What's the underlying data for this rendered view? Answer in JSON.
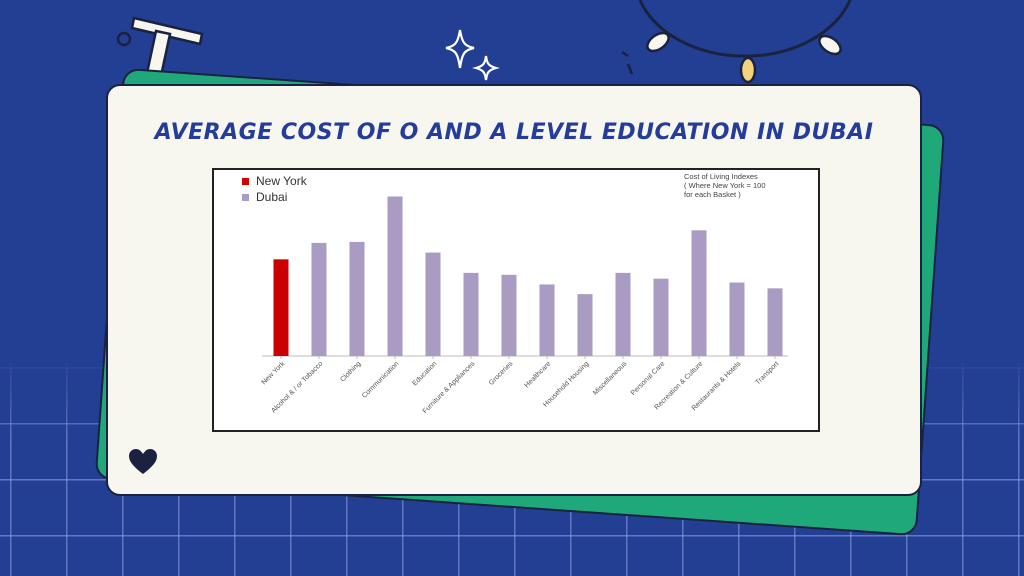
{
  "slide": {
    "title": "AVERAGE COST OF O AND A LEVEL EDUCATION IN DUBAI"
  },
  "icons": {
    "heart": "heart-icon",
    "sparkles": "sparkle-icon",
    "beam": "i-beam-icon",
    "sun": "sun-icon"
  },
  "colors": {
    "background": "#233f94",
    "card": "#f7f6ef",
    "accent_green": "#1fa97a",
    "title": "#243c9a",
    "new_york": "#cc0000",
    "dubai": "#a99bc1"
  },
  "chart_data": {
    "type": "bar",
    "categories": [
      "New York",
      "Alcohol & / or Tobacco",
      "Clothing",
      "Communication",
      "Education",
      "Furniture & Appliances",
      "Groceries",
      "Healthcare",
      "Household Housing",
      "Miscellaneous",
      "Personal Care",
      "Recreation & Culture",
      "Restaurants & Hotels",
      "Transport"
    ],
    "series": [
      {
        "name": "New York",
        "values": [
          100,
          null,
          null,
          null,
          null,
          null,
          null,
          null,
          null,
          null,
          null,
          null,
          null,
          null
        ],
        "color": "#cc0000"
      },
      {
        "name": "Dubai",
        "values": [
          null,
          117,
          118,
          165,
          107,
          86,
          84,
          74,
          64,
          86,
          80,
          130,
          76,
          70
        ],
        "color": "#a99bc1"
      }
    ],
    "annotation": "Cost of Living Indexes ( Where New York = 100 for each Basket )",
    "annotation_lines": [
      "Cost of Living Indexes",
      "( Where New York = 100",
      "for each Basket )"
    ],
    "legend_position": "top-left",
    "ylim": [
      0,
      180
    ],
    "grid": false,
    "xlabel": "",
    "ylabel": ""
  }
}
